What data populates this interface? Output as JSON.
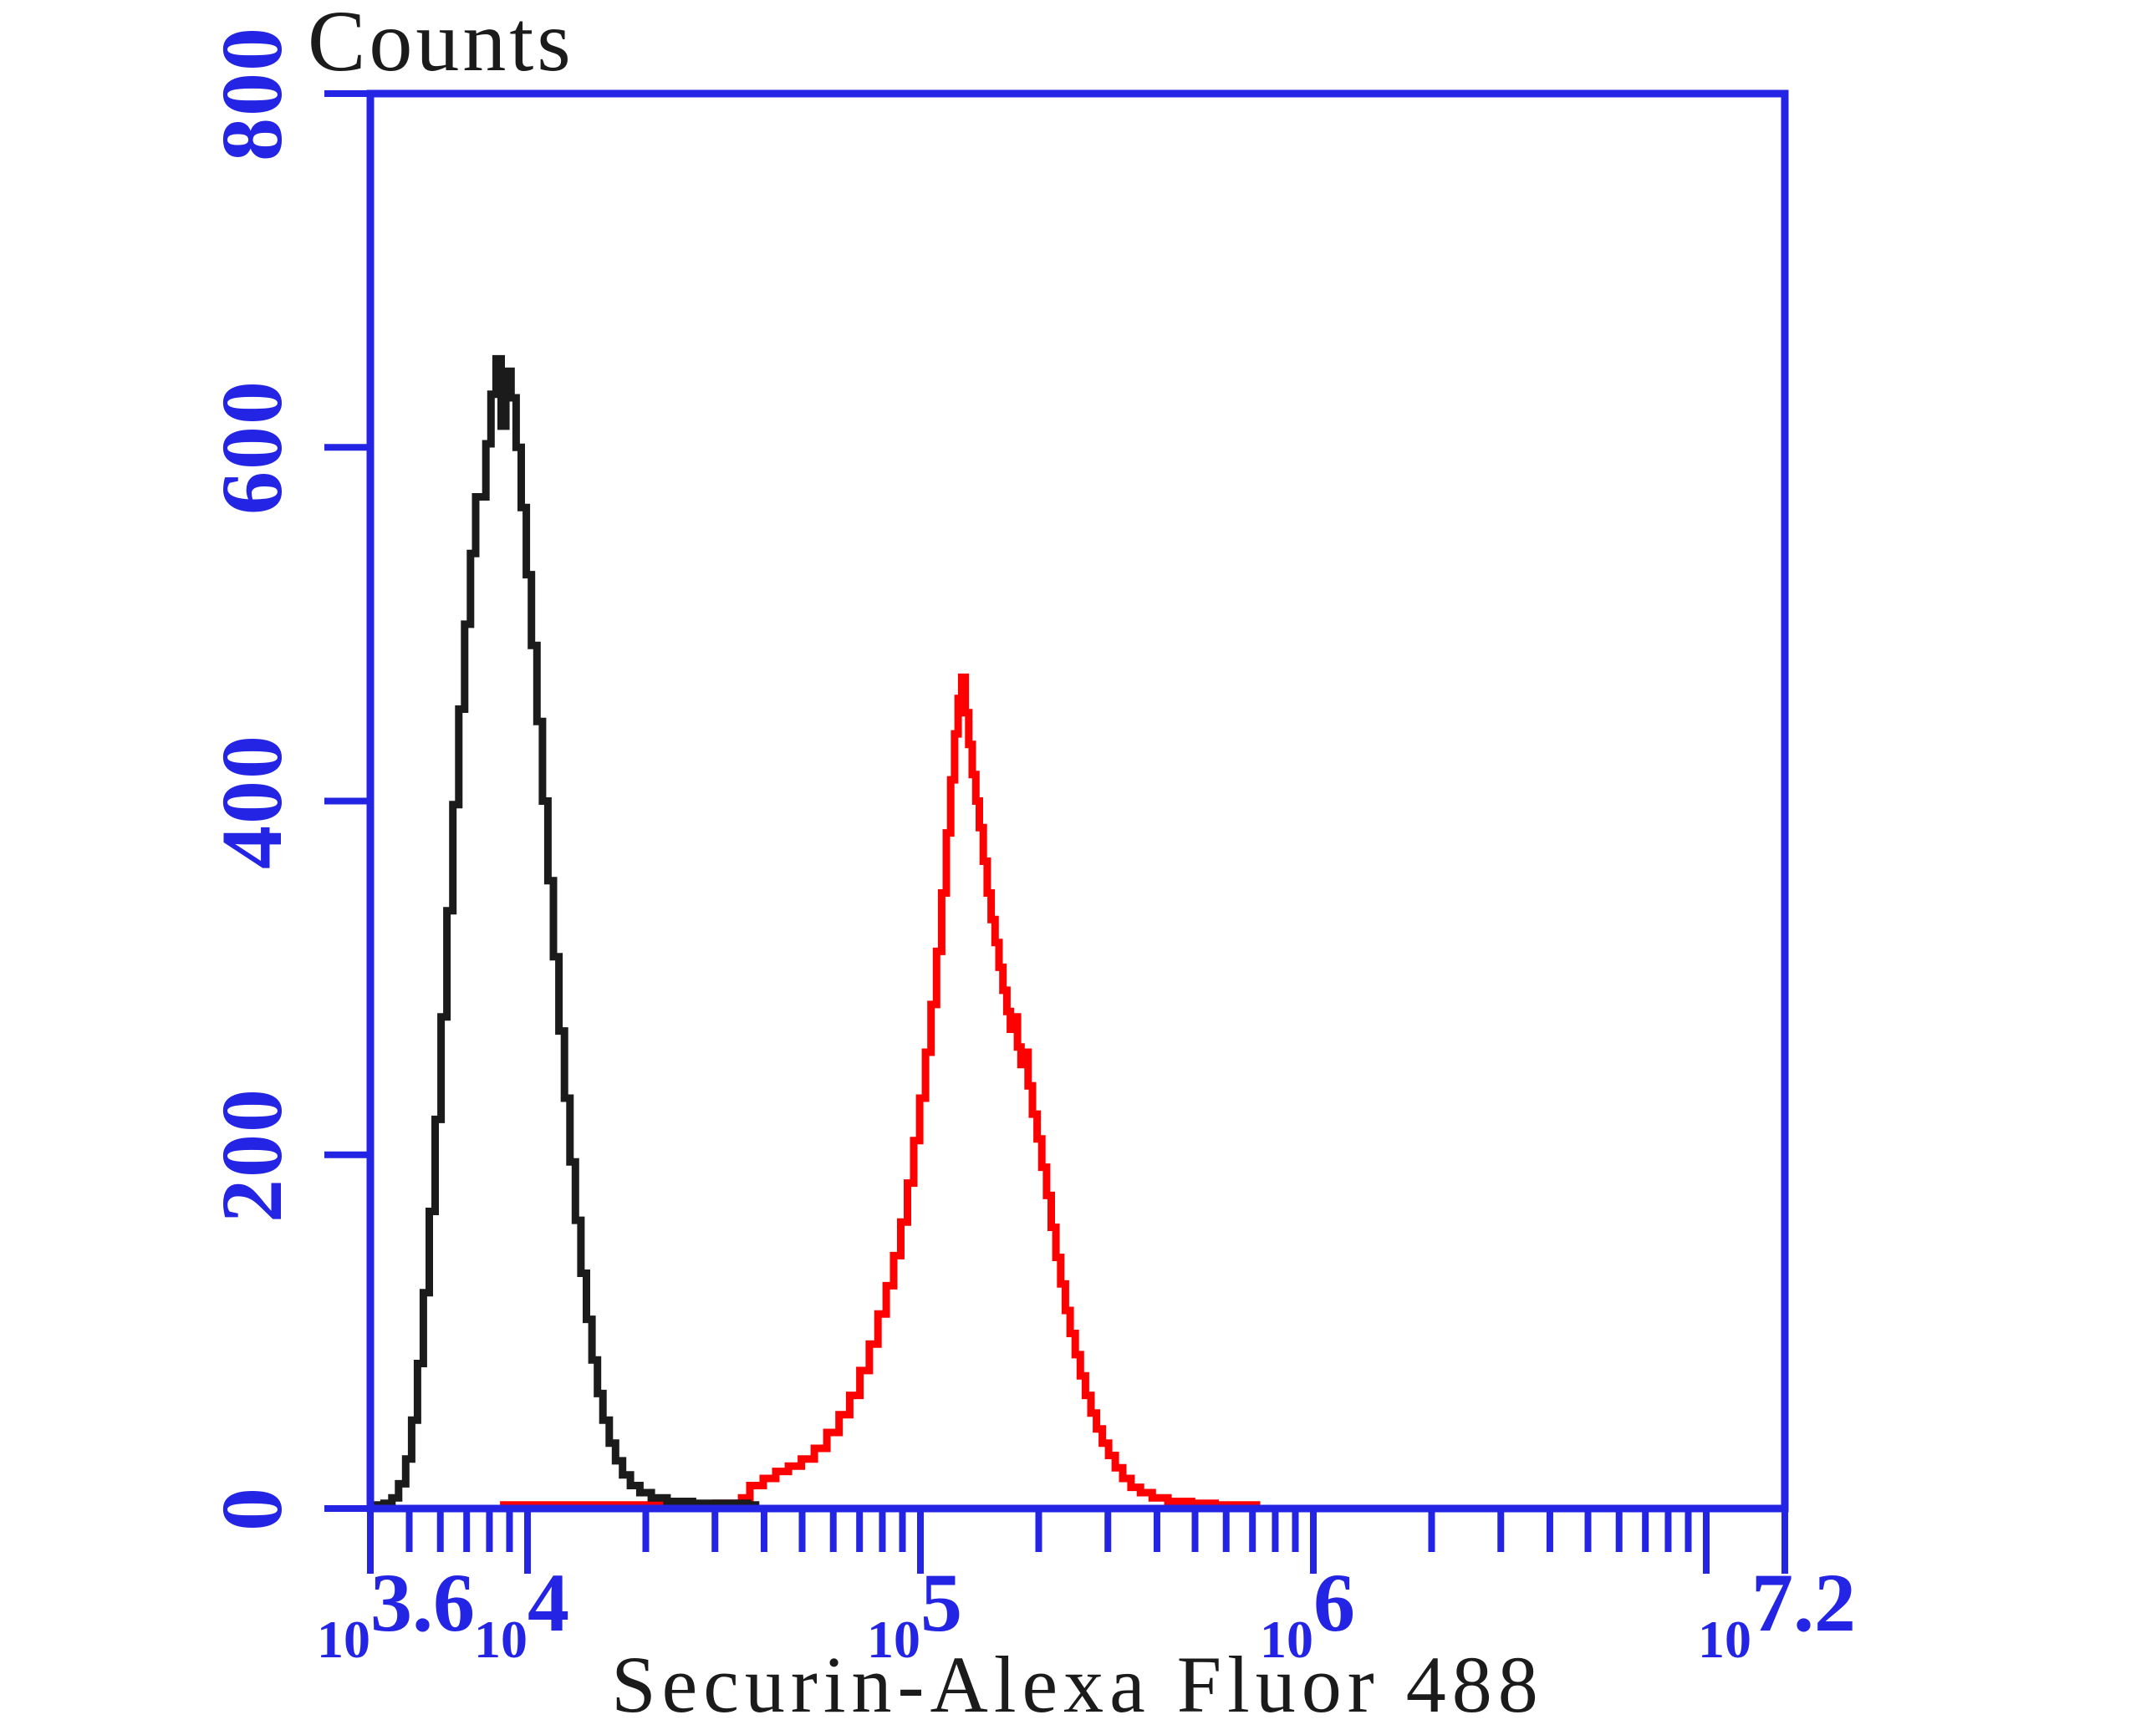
{
  "page": {
    "background": "#ffffff"
  },
  "colors": {
    "axis": "#2424e4",
    "black_series": "#1b1b1b",
    "red_series": "#ff0000",
    "background": "#ffffff",
    "text": "#1b1b1b"
  },
  "chart_data": {
    "type": "line",
    "subtype": "flow-cytometry-histogram-overlay",
    "title": "Counts",
    "xlabel": "Securin-Alexa Fluor 488",
    "ylabel": "Counts",
    "x_scale": "log10",
    "x_range_log10": [
      3.6,
      7.2
    ],
    "ylim": [
      0,
      800
    ],
    "grid": false,
    "legend": "none",
    "xaxis": {
      "major_ticks_log10": [
        3.6,
        4,
        5,
        6,
        7,
        7.2
      ],
      "minor_tick_decades": [
        3,
        4,
        5,
        6
      ],
      "labels": [
        {
          "base": "10",
          "exp": "3.6",
          "log": 3.6
        },
        {
          "base": "10",
          "exp": "4",
          "log": 4
        },
        {
          "base": "10",
          "exp": "5",
          "log": 5
        },
        {
          "base": "10",
          "exp": "6",
          "log": 6
        },
        {
          "base": "10",
          "exp": "7.2",
          "log": 7.2
        }
      ]
    },
    "yaxis": {
      "tick_values": [
        0,
        200,
        400,
        600,
        800
      ],
      "labels": [
        {
          "text": "0",
          "value": 0
        },
        {
          "text": "200",
          "value": 200
        },
        {
          "text": "400",
          "value": 400
        },
        {
          "text": "600",
          "value": 600
        },
        {
          "text": "800",
          "value": 800
        }
      ]
    },
    "series": [
      {
        "name": "red-curve",
        "color": "#ff0000",
        "style": "step-histogram",
        "peak": {
          "x_log10": 5.1,
          "counts": 470
        },
        "points": [
          [
            3.93,
            2
          ],
          [
            4.15,
            2
          ],
          [
            4.33,
            2
          ],
          [
            4.48,
            3
          ],
          [
            4.545,
            6
          ],
          [
            4.566,
            13
          ],
          [
            4.6,
            17
          ],
          [
            4.632,
            21
          ],
          [
            4.664,
            24
          ],
          [
            4.697,
            28
          ],
          [
            4.73,
            34
          ],
          [
            4.762,
            43
          ],
          [
            4.793,
            53
          ],
          [
            4.82,
            64
          ],
          [
            4.846,
            78
          ],
          [
            4.87,
            93
          ],
          [
            4.892,
            110
          ],
          [
            4.913,
            126
          ],
          [
            4.932,
            143
          ],
          [
            4.95,
            162
          ],
          [
            4.967,
            184
          ],
          [
            4.983,
            208
          ],
          [
            4.998,
            232
          ],
          [
            5.013,
            258
          ],
          [
            5.027,
            285
          ],
          [
            5.041,
            315
          ],
          [
            5.054,
            348
          ],
          [
            5.066,
            382
          ],
          [
            5.077,
            412
          ],
          [
            5.087,
            438
          ],
          [
            5.096,
            458
          ],
          [
            5.105,
            470
          ],
          [
            5.114,
            450
          ],
          [
            5.123,
            432
          ],
          [
            5.132,
            415
          ],
          [
            5.141,
            400
          ],
          [
            5.15,
            385
          ],
          [
            5.16,
            366
          ],
          [
            5.17,
            348
          ],
          [
            5.18,
            333
          ],
          [
            5.19,
            320
          ],
          [
            5.2,
            306
          ],
          [
            5.21,
            293
          ],
          [
            5.22,
            281
          ],
          [
            5.229,
            271
          ],
          [
            5.238,
            278
          ],
          [
            5.247,
            261
          ],
          [
            5.256,
            251
          ],
          [
            5.265,
            258
          ],
          [
            5.274,
            239
          ],
          [
            5.285,
            223
          ],
          [
            5.297,
            209
          ],
          [
            5.309,
            193
          ],
          [
            5.321,
            177
          ],
          [
            5.333,
            159
          ],
          [
            5.345,
            142
          ],
          [
            5.357,
            127
          ],
          [
            5.369,
            112
          ],
          [
            5.381,
            99
          ],
          [
            5.394,
            87
          ],
          [
            5.407,
            75
          ],
          [
            5.42,
            64
          ],
          [
            5.434,
            54
          ],
          [
            5.448,
            45
          ],
          [
            5.463,
            37
          ],
          [
            5.479,
            30
          ],
          [
            5.496,
            23
          ],
          [
            5.515,
            17
          ],
          [
            5.536,
            12
          ],
          [
            5.56,
            9
          ],
          [
            5.59,
            6
          ],
          [
            5.63,
            4
          ],
          [
            5.69,
            3
          ],
          [
            5.75,
            2
          ],
          [
            5.865,
            2
          ]
        ]
      },
      {
        "name": "black-curve",
        "color": "#1b1b1b",
        "style": "step-histogram",
        "peak": {
          "x_log10": 3.92,
          "counts": 650
        },
        "points": [
          [
            3.6,
            2
          ],
          [
            3.635,
            3
          ],
          [
            3.655,
            6
          ],
          [
            3.672,
            14
          ],
          [
            3.69,
            28
          ],
          [
            3.705,
            50
          ],
          [
            3.72,
            82
          ],
          [
            3.735,
            122
          ],
          [
            3.75,
            168
          ],
          [
            3.765,
            220
          ],
          [
            3.78,
            278
          ],
          [
            3.795,
            338
          ],
          [
            3.81,
            398
          ],
          [
            3.825,
            452
          ],
          [
            3.84,
            500
          ],
          [
            3.855,
            540
          ],
          [
            3.868,
            572
          ],
          [
            3.881,
            572
          ],
          [
            3.894,
            602
          ],
          [
            3.907,
            630
          ],
          [
            3.92,
            650
          ],
          [
            3.933,
            612
          ],
          [
            3.945,
            643
          ],
          [
            3.958,
            628
          ],
          [
            3.971,
            600
          ],
          [
            3.984,
            566
          ],
          [
            3.997,
            528
          ],
          [
            4.01,
            488
          ],
          [
            4.024,
            445
          ],
          [
            4.038,
            400
          ],
          [
            4.052,
            355
          ],
          [
            4.066,
            312
          ],
          [
            4.08,
            270
          ],
          [
            4.094,
            232
          ],
          [
            4.108,
            196
          ],
          [
            4.122,
            163
          ],
          [
            4.136,
            133
          ],
          [
            4.15,
            107
          ],
          [
            4.164,
            84
          ],
          [
            4.178,
            65
          ],
          [
            4.192,
            50
          ],
          [
            4.208,
            37
          ],
          [
            4.224,
            27
          ],
          [
            4.242,
            19
          ],
          [
            4.262,
            13
          ],
          [
            4.286,
            9
          ],
          [
            4.315,
            6
          ],
          [
            4.355,
            4
          ],
          [
            4.42,
            3
          ],
          [
            4.5,
            3
          ],
          [
            4.56,
            2
          ],
          [
            4.59,
            2
          ]
        ]
      }
    ]
  }
}
